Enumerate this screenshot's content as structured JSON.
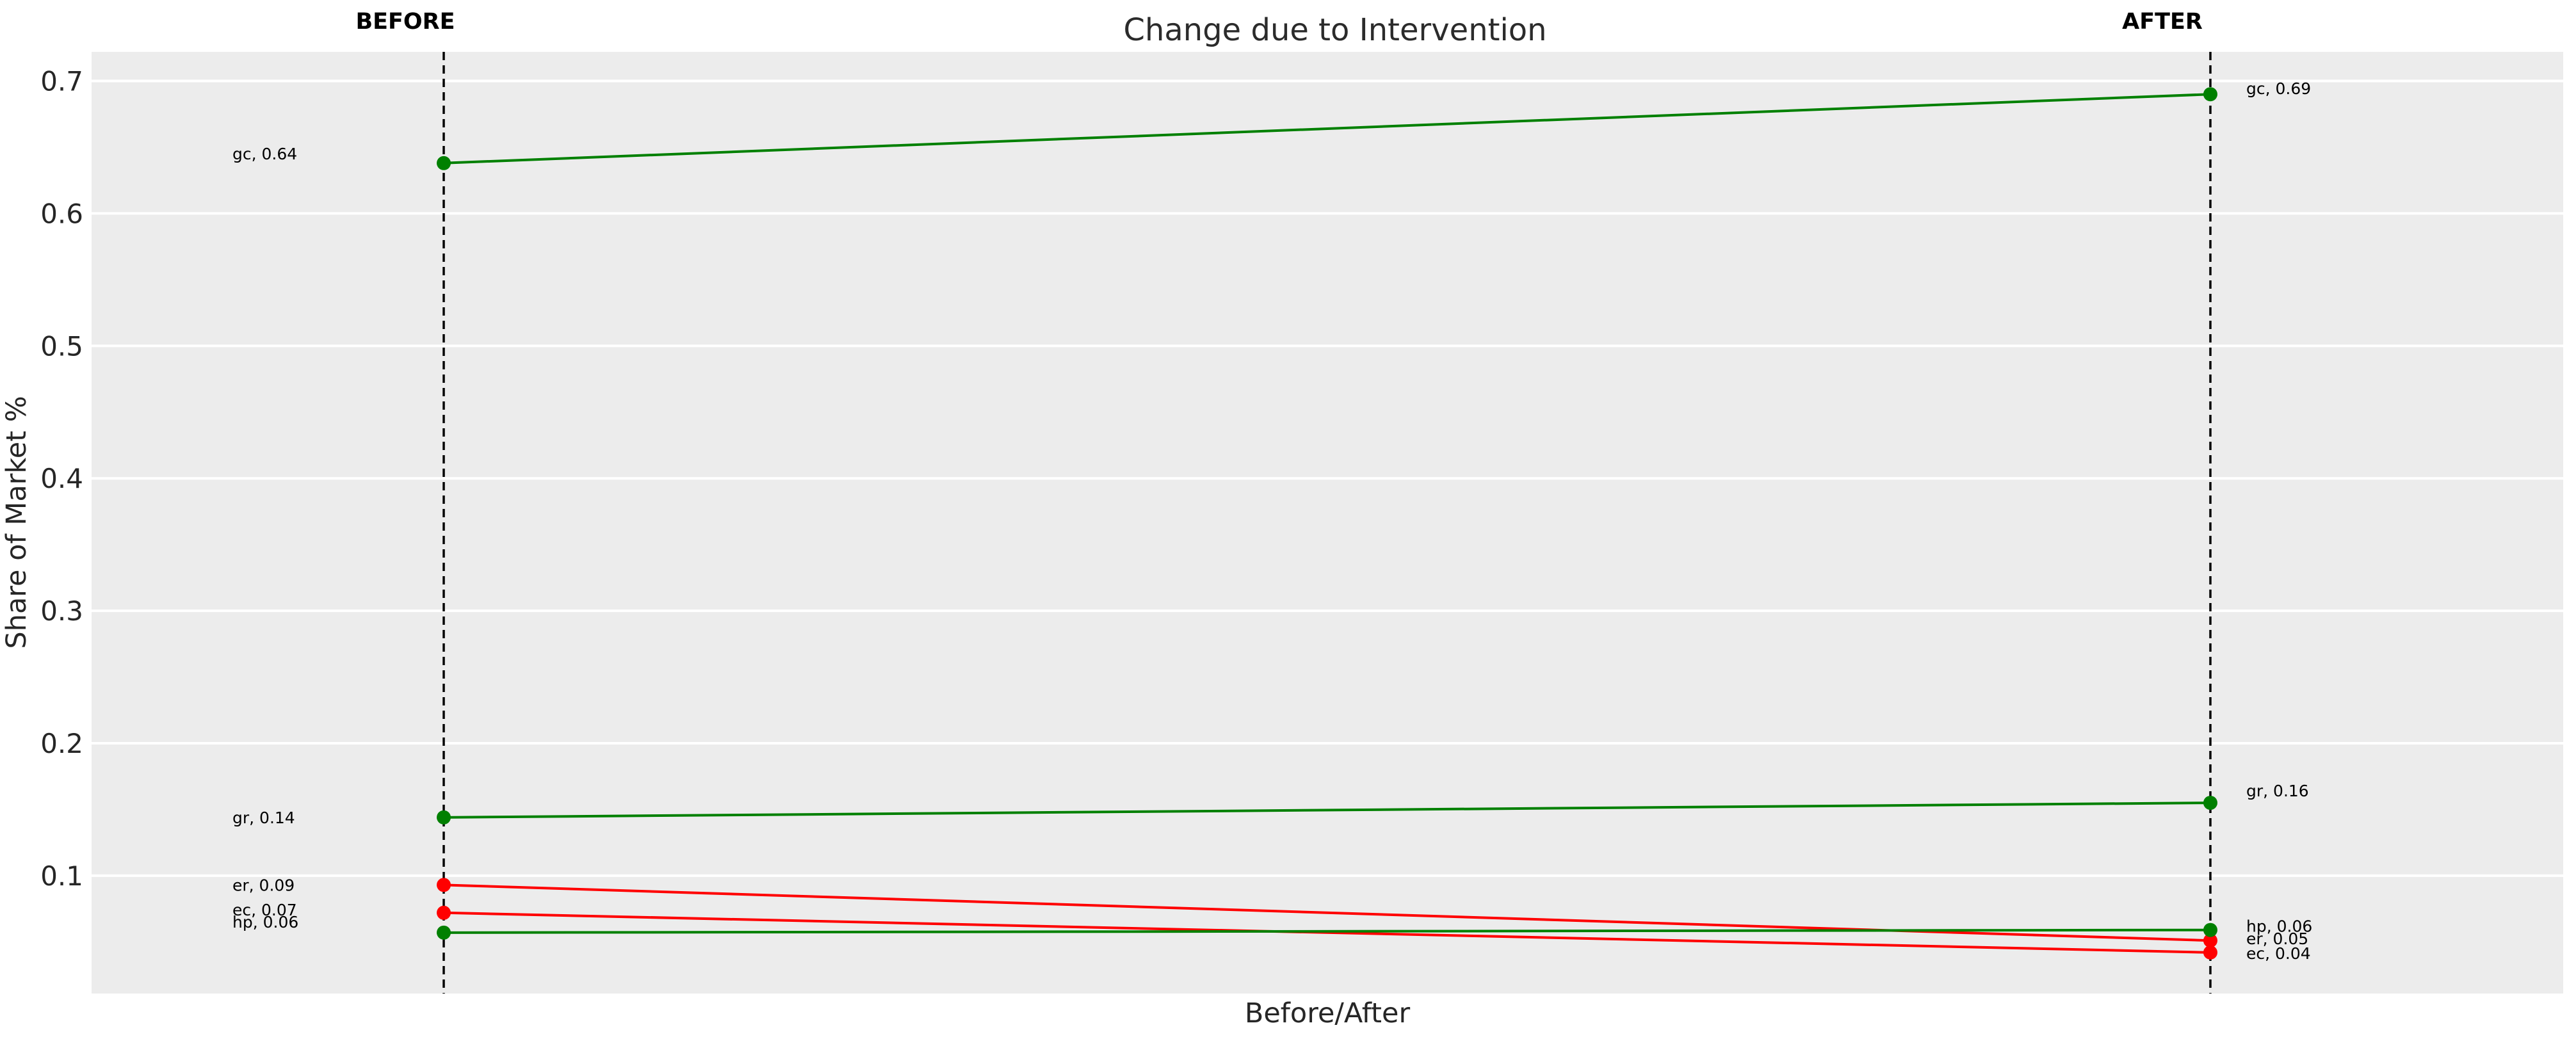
{
  "header": {
    "title": "Change due to Intervention",
    "before_label": "BEFORE",
    "after_label": "AFTER"
  },
  "axes": {
    "xlabel": "Before/After",
    "ylabel": "Share of Market %"
  },
  "chart_data": {
    "type": "line",
    "subtype": "slopegraph",
    "title": "Change due to Intervention",
    "xlabel": "Before/After",
    "ylabel": "Share of Market %",
    "x_categories": [
      "BEFORE",
      "AFTER"
    ],
    "ylim": [
      0.011,
      0.722
    ],
    "yticks": [
      0.7,
      0.6,
      0.5,
      0.4,
      0.3,
      0.2,
      0.1
    ],
    "grid": "horizontal white gridlines on grey panel",
    "legend": "none",
    "guides": "dashed vertical line at each of BEFORE and AFTER",
    "series": [
      {
        "name": "gc",
        "color": "#008000",
        "values": [
          0.64,
          0.69
        ],
        "plotted": [
          0.638,
          0.69
        ],
        "labels": [
          "gc, 0.64",
          "gc, 0.69"
        ],
        "label_dy": [
          -15,
          -9
        ]
      },
      {
        "name": "gr",
        "color": "#008000",
        "values": [
          0.14,
          0.16
        ],
        "plotted": [
          0.144,
          0.155
        ],
        "labels": [
          "gr, 0.14",
          "gr, 0.16"
        ],
        "label_dy": [
          0,
          -19
        ]
      },
      {
        "name": "er",
        "color": "#ff0000",
        "values": [
          0.09,
          0.05
        ],
        "plotted": [
          0.093,
          0.051
        ],
        "labels": [
          "er, 0.09",
          "er, 0.05"
        ],
        "label_dy": [
          0,
          -3
        ]
      },
      {
        "name": "ec",
        "color": "#ff0000",
        "values": [
          0.07,
          0.04
        ],
        "plotted": [
          0.072,
          0.042
        ],
        "labels": [
          "ec, 0.07",
          "ec, 0.04"
        ],
        "label_dy": [
          -5,
          1
        ]
      },
      {
        "name": "hp",
        "color": "#008000",
        "values": [
          0.06,
          0.06
        ],
        "plotted": [
          0.057,
          0.059
        ],
        "labels": [
          "hp, 0.06",
          "hp, 0.06"
        ],
        "label_dy": [
          -17,
          -6
        ]
      }
    ]
  },
  "style": {
    "plot_bg": "#ececec",
    "grid_color": "#ffffff",
    "guide_color": "#000000",
    "increase_color": "#008000",
    "decrease_color": "#ff0000",
    "text_color": "#262626"
  }
}
